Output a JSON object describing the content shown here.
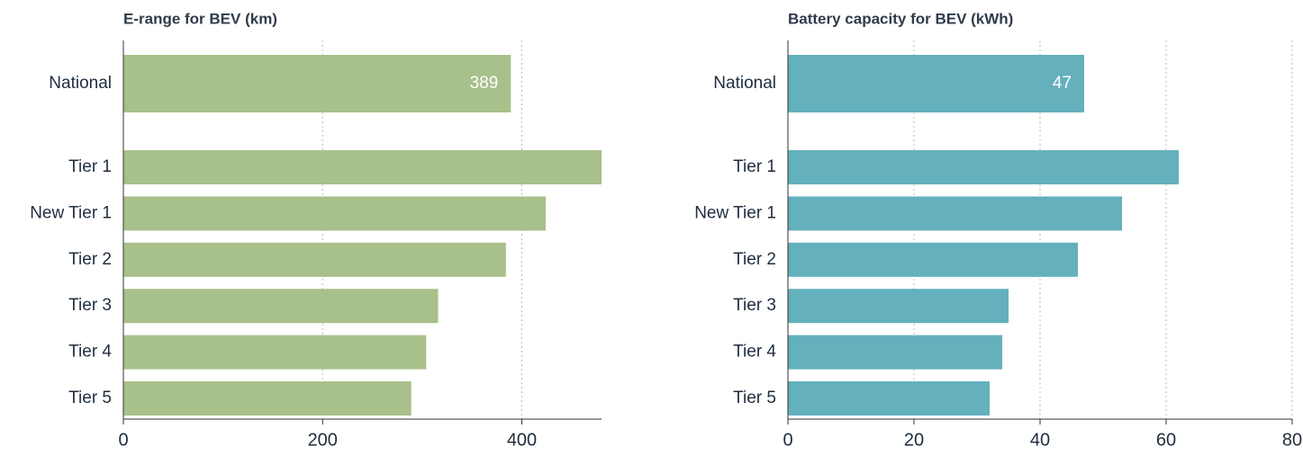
{
  "chart_data": [
    {
      "type": "bar",
      "orientation": "horizontal",
      "title": "E-range for BEV (km)",
      "categories": [
        "National",
        "Tier 1",
        "New Tier 1",
        "Tier 2",
        "Tier 3",
        "Tier 4",
        "Tier 5"
      ],
      "values": [
        389,
        480,
        424,
        384,
        316,
        304,
        289
      ],
      "labeled": [
        0
      ],
      "color": "#a8c08a",
      "xlim": [
        0,
        480
      ],
      "xticks": [
        0,
        200,
        400
      ],
      "grid": true
    },
    {
      "type": "bar",
      "orientation": "horizontal",
      "title": "Battery capacity for BEV (kWh)",
      "categories": [
        "National",
        "Tier 1",
        "New Tier 1",
        "Tier 2",
        "Tier 3",
        "Tier 4",
        "Tier 5"
      ],
      "values": [
        47,
        62,
        53,
        46,
        35,
        34,
        32
      ],
      "labeled": [
        0
      ],
      "color": "#64b0bd",
      "xlim": [
        0,
        80
      ],
      "xticks": [
        0,
        20,
        40,
        60,
        80
      ],
      "grid": true
    }
  ]
}
